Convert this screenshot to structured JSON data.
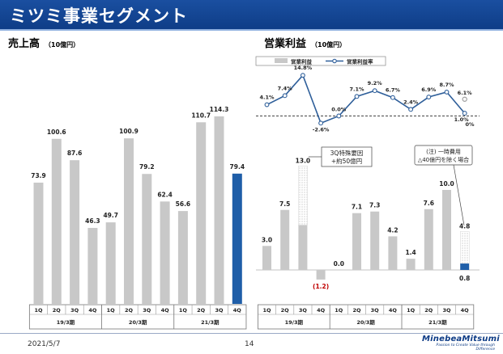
{
  "page": {
    "title": "ミツミ事業セグメント",
    "date": "2021/5/7",
    "page_number": "14",
    "logo": "MinebeaMitsumi",
    "logo_tagline": "Passion to Create Value through Difference"
  },
  "colors": {
    "header": "#0e3c86",
    "bar_gray": "#c8c8c8",
    "bar_blue": "#1f5ea8",
    "line": "#2f5f9a",
    "hatch": "#d8d8d8"
  },
  "chart_data": [
    {
      "id": "sales",
      "type": "bar",
      "title": "売上高",
      "unit": "（10億円）",
      "categories": [
        "1Q",
        "2Q",
        "3Q",
        "4Q",
        "1Q",
        "2Q",
        "3Q",
        "4Q",
        "1Q",
        "2Q",
        "3Q",
        "4Q"
      ],
      "groups": [
        {
          "label": "19/3期",
          "start": 0,
          "end": 3
        },
        {
          "label": "20/3期",
          "start": 4,
          "end": 7
        },
        {
          "label": "21/3期",
          "start": 8,
          "end": 11
        }
      ],
      "values": [
        73.9,
        100.6,
        87.6,
        46.3,
        49.7,
        100.9,
        79.2,
        62.4,
        56.6,
        110.7,
        114.3,
        79.4
      ],
      "labels": [
        "73.9",
        "100.6",
        "87.6",
        "46.3",
        "49.7",
        "100.9",
        "79.2",
        "62.4",
        "56.6",
        "110.7",
        "114.3",
        "79.4"
      ],
      "highlight_index": 11,
      "ylim": [
        0,
        125
      ]
    },
    {
      "id": "op_income",
      "type": "bar+line",
      "title": "営業利益",
      "unit": "（10億円）",
      "legend": {
        "bar": "営業利益",
        "line": "営業利益率",
        "position": "top"
      },
      "categories": [
        "1Q",
        "2Q",
        "3Q",
        "4Q",
        "1Q",
        "2Q",
        "3Q",
        "4Q",
        "1Q",
        "2Q",
        "3Q",
        "4Q"
      ],
      "groups": [
        {
          "label": "19/3期",
          "start": 0,
          "end": 3
        },
        {
          "label": "20/3期",
          "start": 4,
          "end": 7
        },
        {
          "label": "21/3期",
          "start": 8,
          "end": 11
        }
      ],
      "values": [
        3.0,
        7.5,
        5.6,
        -1.2,
        0.0,
        7.1,
        7.3,
        4.2,
        1.4,
        7.6,
        10.0,
        0.8
      ],
      "labels": [
        "3.0",
        "7.5",
        "",
        "(1.2)",
        "0.0",
        "7.1",
        "7.3",
        "4.2",
        "1.4",
        "7.6",
        "10.0",
        "0.8"
      ],
      "excluded_items": [
        {
          "index": 2,
          "adjusted_value": 13.0,
          "label": "13.0"
        },
        {
          "index": 11,
          "adjusted_value": 4.8,
          "label": "4.8"
        }
      ],
      "margin_pct": [
        4.1,
        7.4,
        14.8,
        -2.6,
        0.0,
        7.1,
        9.2,
        6.7,
        2.4,
        6.9,
        8.7,
        1.0
      ],
      "margin_labels": [
        "4.1%",
        "7.4%",
        "14.8%",
        "-2.6%",
        "0.0%",
        "7.1%",
        "9.2%",
        "6.7%",
        "2.4%",
        "6.9%",
        "8.7%",
        "1.0%"
      ],
      "margin_excluded": {
        "index": 11,
        "value": 6.1,
        "label": "6.1%"
      },
      "zero_label": "0%",
      "highlight_index": 11,
      "ylim": [
        -2,
        15
      ]
    }
  ],
  "callouts": {
    "q3": [
      "3Q特殊要因",
      "+約50億円"
    ],
    "q4": [
      "(注) 一時費用",
      "△40億円を除く場合"
    ]
  }
}
